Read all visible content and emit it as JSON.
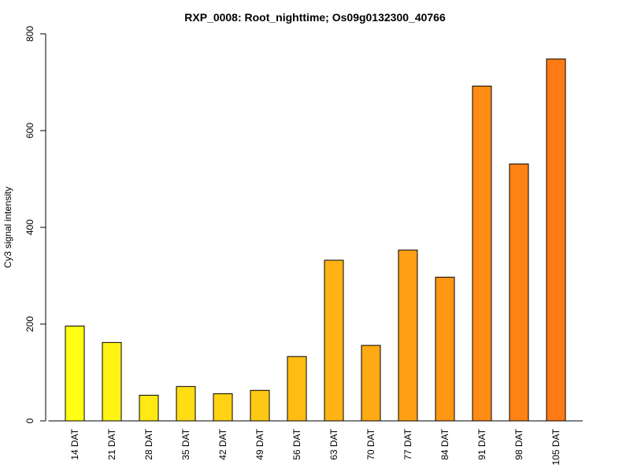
{
  "chart_data": {
    "type": "bar",
    "title": "RXP_0008: Root_nighttime; Os09g0132300_40766",
    "xlabel": "",
    "ylabel": "Cy3 signal intensity",
    "ylim": [
      0,
      800
    ],
    "yticks": [
      0,
      200,
      400,
      600,
      800
    ],
    "grid": false,
    "categories": [
      "14 DAT",
      "21 DAT",
      "28 DAT",
      "35 DAT",
      "42 DAT",
      "49 DAT",
      "56 DAT",
      "63 DAT",
      "70 DAT",
      "77 DAT",
      "84 DAT",
      "91 DAT",
      "98 DAT",
      "105 DAT"
    ],
    "values": [
      196,
      162,
      53,
      71,
      56,
      63,
      133,
      332,
      156,
      353,
      297,
      692,
      531,
      748
    ],
    "colors": [
      "#ffff14",
      "#fff314",
      "#ffe814",
      "#ffdd14",
      "#ffd214",
      "#ffc814",
      "#ffbd14",
      "#ffb314",
      "#ffa914",
      "#ff9f14",
      "#ff9614",
      "#ff8c14",
      "#ff8314",
      "#ff7a14"
    ]
  }
}
